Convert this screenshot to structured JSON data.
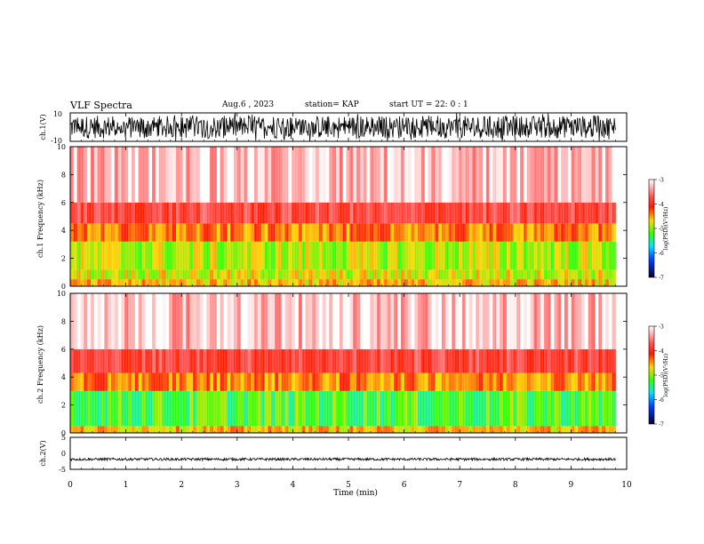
{
  "header": {
    "title": "VLF Spectra",
    "date": "Aug.6 , 2023",
    "station": "station= KAP",
    "start": "start UT = 22: 0 : 1"
  },
  "chart_data": [
    {
      "type": "line",
      "panel": "waveform-ch1",
      "ylabel": "ch.1(V)",
      "ylim": [
        -10,
        10
      ],
      "yticks": [
        "10",
        "-10"
      ],
      "x_range_min": [
        0,
        9.8
      ],
      "color": "#000000",
      "note_amplitude": "dense noise spanning roughly -10 to 10 V"
    },
    {
      "type": "heatmap",
      "panel": "spectrogram-ch1",
      "ylabel": "ch.1 Frequency (kHz)",
      "ylim": [
        0,
        10
      ],
      "yticks": [
        "0",
        "2",
        "4",
        "6",
        "8",
        "10"
      ],
      "x_range_min": [
        0,
        9.8
      ],
      "colorbar": {
        "label": "log(PSD)(V²/Hz)",
        "range": [
          -7,
          -3
        ],
        "ticks": [
          "-3",
          "-4",
          "-5",
          "-6",
          "-7"
        ]
      },
      "bands": [
        {
          "from_khz": 0.0,
          "to_khz": 0.5,
          "level": -4.6
        },
        {
          "from_khz": 0.5,
          "to_khz": 1.2,
          "level": -4.8
        },
        {
          "from_khz": 1.2,
          "to_khz": 3.2,
          "level": -4.9
        },
        {
          "from_khz": 3.2,
          "to_khz": 4.5,
          "level": -4.4
        },
        {
          "from_khz": 4.5,
          "to_khz": 6.0,
          "level": -3.8
        },
        {
          "from_khz": 6.0,
          "to_khz": 10.0,
          "level": -3.2
        }
      ]
    },
    {
      "type": "heatmap",
      "panel": "spectrogram-ch2",
      "ylabel": "ch.2 Frequency (kHz)",
      "ylim": [
        0,
        10
      ],
      "yticks": [
        "0",
        "2",
        "4",
        "6",
        "8",
        "10"
      ],
      "x_range_min": [
        0,
        9.8
      ],
      "colorbar": {
        "label": "log(PSD)(V²/Hz)",
        "range": [
          -7,
          -3
        ],
        "ticks": [
          "-3",
          "-4",
          "-5",
          "-6",
          "-7"
        ]
      },
      "bands": [
        {
          "from_khz": 0.0,
          "to_khz": 0.5,
          "level": -4.6
        },
        {
          "from_khz": 0.5,
          "to_khz": 3.0,
          "level": -5.2
        },
        {
          "from_khz": 3.0,
          "to_khz": 4.3,
          "level": -4.4
        },
        {
          "from_khz": 4.3,
          "to_khz": 6.0,
          "level": -3.8
        },
        {
          "from_khz": 6.0,
          "to_khz": 10.0,
          "level": -3.2
        }
      ]
    },
    {
      "type": "line",
      "panel": "waveform-ch2",
      "ylabel": "ch.2(V)",
      "ylim": [
        -5,
        5
      ],
      "yticks": [
        "5",
        "0",
        "-5"
      ],
      "x_range_min": [
        0,
        9.8
      ],
      "color": "#000000",
      "note_amplitude": "narrow band around -1.5 to -2.2 V"
    }
  ],
  "x_axis": {
    "label": "Time (min)",
    "range": [
      0,
      10
    ],
    "ticks": [
      "0",
      "1",
      "2",
      "3",
      "4",
      "5",
      "6",
      "7",
      "8",
      "9",
      "10"
    ]
  }
}
